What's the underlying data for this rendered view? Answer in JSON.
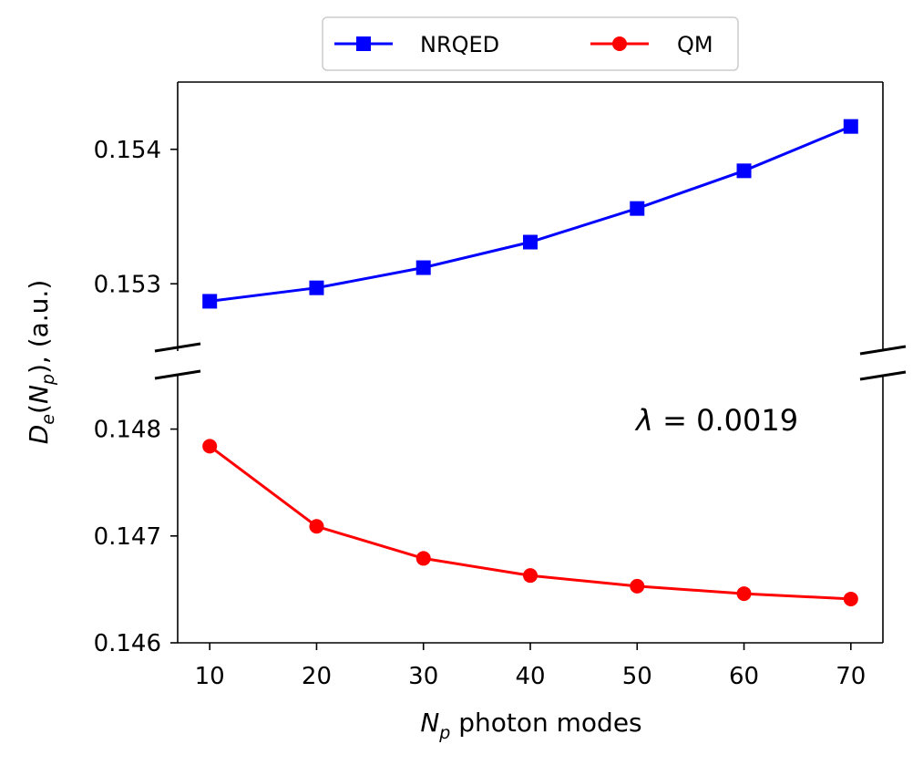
{
  "chart_data": {
    "type": "line",
    "broken_y_axis": true,
    "xlabel_var": "N",
    "xlabel_sub": "p",
    "xlabel_rest": " photon modes",
    "ylabel_D": "D",
    "ylabel_sub_e": "e",
    "ylabel_paren_open": "(",
    "ylabel_N": "N",
    "ylabel_sub_p": "p",
    "ylabel_paren_close": "), (a.u.)",
    "xlim": [
      7,
      73
    ],
    "x_ticks": [
      10,
      20,
      30,
      40,
      50,
      60,
      70
    ],
    "x": [
      10,
      20,
      30,
      40,
      50,
      60,
      70
    ],
    "top_panel": {
      "ylim": [
        0.1525,
        0.1545
      ],
      "y_ticks": [
        0.153,
        0.154
      ],
      "y_tick_labels": [
        "0.153",
        "0.154"
      ]
    },
    "bottom_panel": {
      "ylim": [
        0.146,
        0.1485
      ],
      "y_ticks": [
        0.146,
        0.147,
        0.148
      ],
      "y_tick_labels": [
        "0.146",
        "0.147",
        "0.148"
      ]
    },
    "series": [
      {
        "name": "NRQED",
        "panel": "top",
        "color": "#0000ff",
        "marker": "square",
        "values": [
          0.15287,
          0.15297,
          0.15312,
          0.15331,
          0.15356,
          0.15384,
          0.15417
        ]
      },
      {
        "name": "QM",
        "panel": "bottom",
        "color": "#ff0000",
        "marker": "circle",
        "values": [
          0.14784,
          0.14709,
          0.14679,
          0.14663,
          0.14653,
          0.14646,
          0.14641
        ]
      }
    ],
    "annotation": {
      "symbol": "λ",
      "text": " = 0.0019"
    },
    "legend_position": "top-center"
  }
}
